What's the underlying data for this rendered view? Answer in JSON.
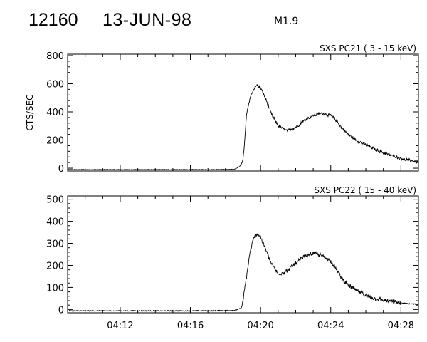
{
  "header": {
    "event_id": "12160",
    "date": "13-JUN-98",
    "flare_class": "M1.9"
  },
  "chart_data": [
    {
      "type": "line",
      "title": "SXS PC21  (  3 - 15 keV)",
      "ylabel": "CTS/SEC",
      "xlabel": "",
      "x_unit": "minutes after 04:09",
      "xlim": [
        0,
        20
      ],
      "ylim": [
        -20,
        810
      ],
      "yticks": [
        0,
        200,
        400,
        600,
        800
      ],
      "ytick_labels": [
        "0",
        "200",
        "400",
        "600",
        "800"
      ],
      "xticks": [
        3,
        7,
        11,
        15,
        19
      ],
      "xtick_labels": [
        "",
        "",
        "",
        "",
        ""
      ],
      "grid": false,
      "noise": 14,
      "series": [
        {
          "x": [
            0,
            8,
            9.5,
            9.8,
            10.0,
            10.1,
            10.2,
            10.4,
            10.6,
            10.8,
            11.0,
            11.3,
            11.6,
            12.0,
            12.5,
            13.0,
            13.5,
            14.0,
            14.5,
            15.0,
            15.3,
            15.6,
            16.0,
            16.5,
            17.0,
            17.5,
            18.0,
            18.5,
            19.0,
            19.5,
            20.0
          ],
          "y": [
            -10,
            -10,
            -8,
            10,
            60,
            200,
            380,
            500,
            560,
            590,
            570,
            490,
            390,
            300,
            265,
            290,
            340,
            375,
            390,
            375,
            340,
            290,
            240,
            195,
            165,
            135,
            110,
            90,
            70,
            55,
            45
          ]
        }
      ]
    },
    {
      "type": "line",
      "title": "SXS PC22  ( 15 - 40 keV)",
      "ylabel": "",
      "xlabel": "",
      "x_unit": "minutes after 04:09",
      "xlim": [
        0,
        20
      ],
      "ylim": [
        -15,
        515
      ],
      "yticks": [
        0,
        100,
        200,
        300,
        400,
        500
      ],
      "ytick_labels": [
        "0",
        "100",
        "200",
        "300",
        "400",
        "500"
      ],
      "xticks": [
        3,
        7,
        11,
        15,
        19
      ],
      "xtick_labels": [
        "04:12",
        "04:16",
        "04:20",
        "04:24",
        "04:28"
      ],
      "grid": false,
      "noise": 12,
      "series": [
        {
          "x": [
            0,
            8,
            9.5,
            9.9,
            10.0,
            10.2,
            10.4,
            10.6,
            10.8,
            11.0,
            11.3,
            11.6,
            12.0,
            12.5,
            13.0,
            13.5,
            14.0,
            14.5,
            15.0,
            15.3,
            15.6,
            16.0,
            16.5,
            17.0,
            17.5,
            18.0,
            18.5,
            19.0,
            19.5,
            20.0
          ],
          "y": [
            -6,
            -6,
            -4,
            5,
            40,
            150,
            260,
            320,
            345,
            330,
            270,
            210,
            160,
            175,
            210,
            240,
            255,
            245,
            220,
            185,
            145,
            110,
            85,
            65,
            50,
            42,
            35,
            30,
            26,
            24
          ]
        }
      ]
    }
  ]
}
